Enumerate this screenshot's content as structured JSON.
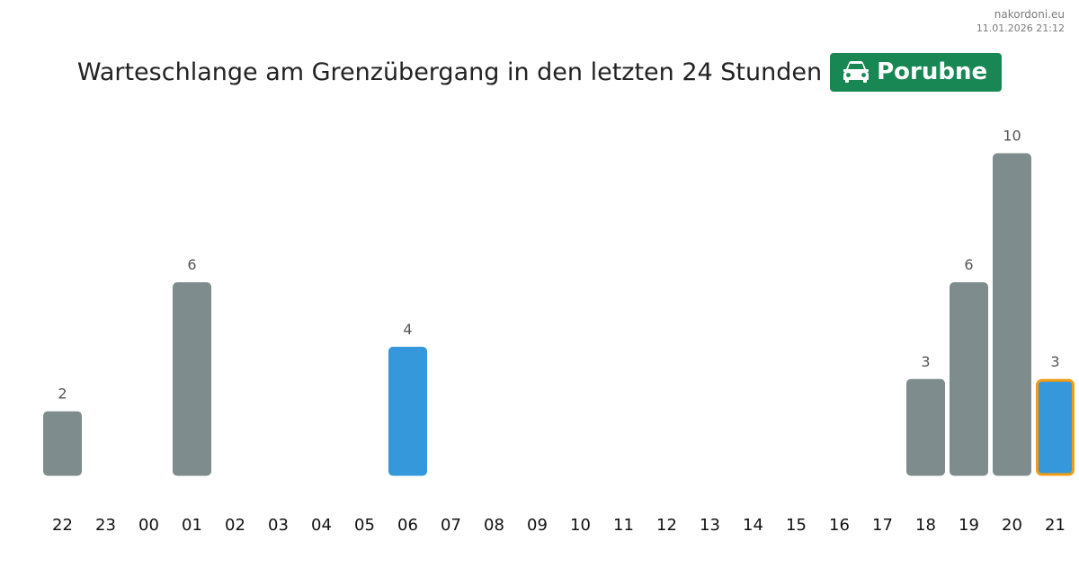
{
  "brand": {
    "site": "nakordoni.eu",
    "timestamp": "11.01.2026 21:12"
  },
  "header": {
    "title": "Warteschlange am Grenzübergang in den letzten 24 Stunden",
    "badge_label": "Porubne",
    "badge_icon": "car-icon",
    "badge_color": "#198754"
  },
  "chart_data": {
    "type": "bar",
    "categories": [
      "22",
      "23",
      "00",
      "01",
      "02",
      "03",
      "04",
      "05",
      "06",
      "07",
      "08",
      "09",
      "10",
      "11",
      "12",
      "13",
      "14",
      "15",
      "16",
      "17",
      "18",
      "19",
      "20",
      "21"
    ],
    "values": [
      2,
      null,
      null,
      6,
      null,
      null,
      null,
      null,
      4,
      null,
      null,
      null,
      null,
      null,
      null,
      null,
      null,
      null,
      null,
      null,
      3,
      6,
      10,
      3
    ],
    "highlighted_categories": [
      "06",
      "21"
    ],
    "current_category": "21",
    "colors": {
      "bar": "#7f8c8d",
      "highlight": "#3498db",
      "current_outline": "#f39c12"
    },
    "ylim": [
      0,
      10
    ],
    "grid": false,
    "legend": "none"
  }
}
